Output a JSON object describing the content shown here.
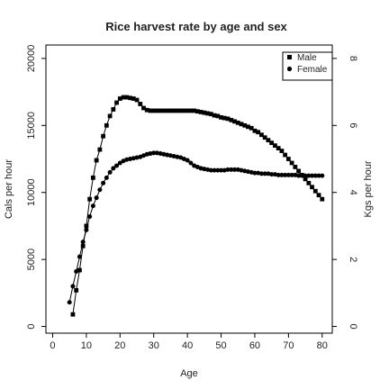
{
  "chart_data": {
    "type": "line",
    "title": "Rice harvest rate by age and sex",
    "xlabel": "Age",
    "ylabel": "Cals per hour",
    "y2label": "Kgs per hour",
    "xlim": [
      -2,
      83
    ],
    "ylim": [
      -500,
      21000
    ],
    "y2lim": [
      -0.2,
      8.4
    ],
    "xticks": [
      0,
      10,
      20,
      30,
      40,
      50,
      60,
      70,
      80
    ],
    "yticks": [
      0,
      5000,
      10000,
      15000,
      20000
    ],
    "y2ticks": [
      0,
      2,
      4,
      6,
      8
    ],
    "legend_position": "top-right",
    "colors": {
      "series": "#000000",
      "axes": "#000000",
      "text": "#222222"
    },
    "series": [
      {
        "name": "Male",
        "marker": "square",
        "x": [
          6,
          7,
          8,
          9,
          10,
          11,
          12,
          13,
          14,
          15,
          16,
          17,
          18,
          19,
          20,
          21,
          22,
          23,
          24,
          25,
          26,
          27,
          28,
          29,
          30,
          31,
          32,
          33,
          34,
          35,
          36,
          37,
          38,
          39,
          40,
          41,
          42,
          43,
          44,
          45,
          46,
          47,
          48,
          49,
          50,
          51,
          52,
          53,
          54,
          55,
          56,
          57,
          58,
          59,
          60,
          61,
          62,
          63,
          64,
          65,
          66,
          67,
          68,
          69,
          70,
          71,
          72,
          73,
          74,
          75,
          76,
          77,
          78,
          79,
          80
        ],
        "values": [
          900,
          2700,
          4200,
          6000,
          7500,
          9500,
          11100,
          12400,
          13200,
          14200,
          15000,
          15700,
          16200,
          16700,
          17000,
          17100,
          17100,
          17050,
          17000,
          16900,
          16600,
          16300,
          16150,
          16100,
          16100,
          16100,
          16100,
          16100,
          16100,
          16100,
          16100,
          16100,
          16100,
          16100,
          16100,
          16100,
          16100,
          16050,
          16000,
          15950,
          15900,
          15850,
          15750,
          15700,
          15600,
          15550,
          15500,
          15400,
          15300,
          15200,
          15100,
          15000,
          14900,
          14800,
          14600,
          14500,
          14300,
          14100,
          13900,
          13700,
          13500,
          13300,
          13100,
          12800,
          12500,
          12200,
          11900,
          11600,
          11300,
          11000,
          10700,
          10400,
          10100,
          9800,
          9500
        ]
      },
      {
        "name": "Female",
        "marker": "circle",
        "x": [
          5,
          6,
          7,
          8,
          9,
          10,
          11,
          12,
          13,
          14,
          15,
          16,
          17,
          18,
          19,
          20,
          21,
          22,
          23,
          24,
          25,
          26,
          27,
          28,
          29,
          30,
          31,
          32,
          33,
          34,
          35,
          36,
          37,
          38,
          39,
          40,
          41,
          42,
          43,
          44,
          45,
          46,
          47,
          48,
          49,
          50,
          51,
          52,
          53,
          54,
          55,
          56,
          57,
          58,
          59,
          60,
          61,
          62,
          63,
          64,
          65,
          66,
          67,
          68,
          69,
          70,
          71,
          72,
          73,
          74,
          75,
          76,
          77,
          78,
          79,
          80
        ],
        "values": [
          1800,
          3000,
          4100,
          5200,
          6300,
          7200,
          8200,
          9000,
          9600,
          10200,
          10700,
          11100,
          11500,
          11800,
          12000,
          12200,
          12350,
          12450,
          12500,
          12550,
          12600,
          12650,
          12750,
          12850,
          12900,
          12950,
          12950,
          12900,
          12850,
          12800,
          12750,
          12700,
          12650,
          12600,
          12500,
          12400,
          12200,
          12000,
          11900,
          11800,
          11750,
          11700,
          11650,
          11650,
          11650,
          11650,
          11650,
          11700,
          11700,
          11700,
          11700,
          11650,
          11600,
          11550,
          11500,
          11450,
          11450,
          11400,
          11400,
          11400,
          11350,
          11350,
          11300,
          11300,
          11300,
          11300,
          11300,
          11300,
          11250,
          11250,
          11250,
          11250,
          11250,
          11250,
          11250,
          11250
        ]
      }
    ]
  }
}
